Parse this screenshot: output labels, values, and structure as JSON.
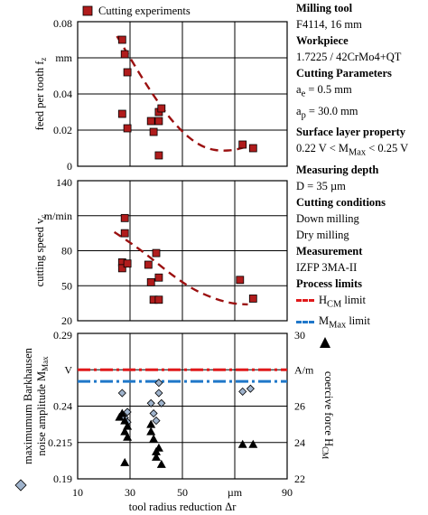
{
  "colors": {
    "experiment_marker": "#b01c1c",
    "trend": "#9b1010",
    "hcm_limit": "#e0191b",
    "mmax_limit": "#1f77c9",
    "diamond": "#9fb3cc",
    "triangle": "#000000"
  },
  "legend": {
    "experiments": "Cutting experiments"
  },
  "chart_data": [
    {
      "type": "scatter",
      "panel": "feed",
      "ylabel_main": "feed per tooth f",
      "ylabel_sub": "z",
      "unit_label": "mm",
      "ylim": [
        0,
        0.08
      ],
      "yticks": [
        "0.08",
        "",
        "0.04",
        "0.02",
        "0"
      ],
      "ytick_values": [
        0.08,
        0.06,
        0.04,
        0.02,
        0
      ],
      "series": [
        {
          "name": "Cutting experiments",
          "x": [
            27,
            28,
            29,
            27,
            29,
            38,
            39,
            41,
            41,
            42,
            41,
            73,
            77
          ],
          "y": [
            0.07,
            0.062,
            0.052,
            0.029,
            0.021,
            0.025,
            0.019,
            0.025,
            0.03,
            0.032,
            0.006,
            0.012,
            0.01
          ]
        }
      ],
      "trend": {
        "x": [
          25,
          30,
          35,
          40,
          45,
          50,
          55,
          60,
          65,
          70,
          75
        ],
        "y": [
          0.072,
          0.06,
          0.048,
          0.037,
          0.027,
          0.019,
          0.013,
          0.0095,
          0.0085,
          0.009,
          0.011
        ]
      }
    },
    {
      "type": "scatter",
      "panel": "speed",
      "ylabel_main": "cutting speed v",
      "ylabel_sub": "c",
      "unit_label": "m/min",
      "ylim": [
        20,
        140
      ],
      "yticks": [
        "140",
        "",
        "80",
        "50",
        "20"
      ],
      "ytick_values": [
        140,
        110,
        80,
        50,
        20
      ],
      "series": [
        {
          "name": "Cutting experiments",
          "x": [
            28,
            28,
            27,
            27,
            29,
            37,
            38,
            40,
            41,
            39,
            41,
            72,
            77
          ],
          "y": [
            108,
            95,
            70,
            65,
            69,
            68,
            53,
            78,
            57,
            38,
            38,
            55,
            39
          ]
        }
      ],
      "trend": {
        "x": [
          24,
          30,
          35,
          40,
          45,
          50,
          55,
          60,
          65,
          70,
          75
        ],
        "y": [
          96,
          87,
          79,
          70,
          61,
          53,
          46,
          41,
          37,
          34.5,
          34
        ]
      }
    },
    {
      "type": "scatter",
      "panel": "barkhausen",
      "ylabel_main": "maximumum Barkhausen",
      "ylabel_line2": "noise amplitude M",
      "ylabel_sub": "Max",
      "unit_label": "V",
      "right_unit_label": "A/m",
      "right_label_main": "coercive force H",
      "right_label_sub": "CM",
      "ylim": [
        0.19,
        0.29
      ],
      "yticks": [
        "0.29",
        "",
        "0.24",
        "0.215",
        "0.19"
      ],
      "ytick_values": [
        0.29,
        0.265,
        0.24,
        0.215,
        0.19
      ],
      "y2lim": [
        22,
        30
      ],
      "y2ticks": [
        "30",
        "",
        "26",
        "24",
        "22"
      ],
      "y2tick_values": [
        30,
        28,
        26,
        24,
        22
      ],
      "xlabel": "tool radius reduction Δr",
      "x_unit_label": "µm",
      "xlim": [
        10,
        90
      ],
      "xticks": [
        "10",
        "30",
        "50",
        "",
        "90"
      ],
      "xtick_values": [
        10,
        30,
        50,
        70,
        90
      ],
      "hlines": [
        {
          "name": "H_CM limit",
          "axis": "right",
          "value": 28.0
        },
        {
          "name": "M_Max limit",
          "axis": "left",
          "value": 0.257
        }
      ],
      "series": [
        {
          "name": "Barkhausen noise amplitude",
          "x": [
            27,
            28,
            29,
            29,
            38,
            39,
            40,
            41,
            41,
            42,
            73,
            76
          ],
          "y": [
            0.249,
            0.232,
            0.236,
            0.229,
            0.242,
            0.235,
            0.23,
            0.256,
            0.249,
            0.242,
            0.25,
            0.252
          ]
        },
        {
          "name": "coercive force",
          "x": [
            26,
            27,
            28,
            29,
            29,
            28,
            28,
            38,
            38,
            39,
            40,
            40,
            41,
            42,
            73,
            77
          ],
          "y": [
            25.4,
            25.6,
            24.6,
            24.9,
            24.3,
            25.2,
            22.9,
            25.0,
            24.6,
            24.2,
            23.2,
            23.5,
            23.7,
            22.8,
            23.9,
            23.9
          ]
        }
      ]
    }
  ],
  "sidebar": {
    "milling_tool_heading": "Milling tool",
    "milling_tool_value": "F4114, 16 mm",
    "workpiece_heading": "Workpiece",
    "workpiece_value": "1.7225 / 42CrMo4+QT",
    "cutting_params_heading": "Cutting Parameters",
    "ae_symbol": "a",
    "ae_sub": "e",
    "ae_value": " = 0.5 mm",
    "ap_symbol": "a",
    "ap_sub": "p",
    "ap_value": " = 30.0 mm",
    "surface_heading": "Surface layer property",
    "surface_pre": "0.22 V < M",
    "surface_sub": "Max",
    "surface_post": " < 0.25 V",
    "depth_heading": "Measuring depth",
    "depth_value": "D = 35 µm",
    "conditions_heading": "Cutting conditions",
    "condition_1": "Down milling",
    "condition_2": "Dry milling",
    "measurement_heading": "Measurement",
    "measurement_value": "IZFP 3MA-II",
    "limits_heading": "Process limits",
    "hcm_label": "H",
    "hcm_sub": "CM",
    "hcm_suffix": " limit",
    "mmax_label": "M",
    "mmax_sub": "Max",
    "mmax_suffix": " limit"
  }
}
